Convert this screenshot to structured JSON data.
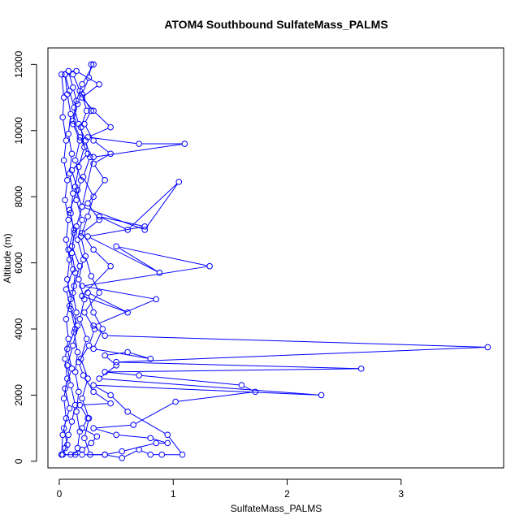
{
  "chart_data": {
    "type": "line",
    "title": "ATOM4 Southbound SulfateMass_PALMS",
    "xlabel": "SulfateMass_PALMS",
    "ylabel": "Altitude (m)",
    "xlim": [
      -0.1,
      3.9
    ],
    "ylim": [
      -200,
      12500
    ],
    "xticks": [
      0,
      1,
      2,
      3
    ],
    "yticks": [
      0,
      2000,
      4000,
      6000,
      8000,
      10000,
      12000
    ],
    "grid": false,
    "legend": "none",
    "line_color": "#0000ff",
    "marker": "open-circle",
    "series": [
      {
        "points": [
          [
            0.02,
            200
          ],
          [
            0.05,
            400
          ],
          [
            0.08,
            800
          ],
          [
            0.11,
            1200
          ],
          [
            0.14,
            1700
          ],
          [
            0.1,
            2300
          ],
          [
            0.07,
            2900
          ],
          [
            0.12,
            3500
          ],
          [
            0.16,
            4100
          ],
          [
            0.09,
            4700
          ],
          [
            0.13,
            5300
          ],
          [
            0.18,
            5900
          ],
          [
            0.11,
            6500
          ],
          [
            0.15,
            7100
          ],
          [
            0.2,
            7700
          ],
          [
            0.14,
            8300
          ],
          [
            0.17,
            8900
          ],
          [
            0.22,
            9500
          ],
          [
            0.19,
            10100
          ],
          [
            0.24,
            10600
          ],
          [
            0.2,
            11100
          ],
          [
            0.26,
            11600
          ],
          [
            0.28,
            12000
          ],
          [
            0.3,
            12000
          ],
          [
            0.2,
            11400
          ],
          [
            0.15,
            10900
          ],
          [
            0.12,
            10300
          ],
          [
            0.18,
            9800
          ],
          [
            0.25,
            9300
          ],
          [
            0.11,
            8800
          ],
          [
            0.16,
            8200
          ],
          [
            0.09,
            7600
          ],
          [
            0.13,
            7000
          ],
          [
            0.08,
            6400
          ],
          [
            0.12,
            5800
          ],
          [
            0.06,
            5200
          ],
          [
            0.1,
            4600
          ],
          [
            0.14,
            4000
          ],
          [
            0.07,
            3400
          ],
          [
            0.11,
            2800
          ],
          [
            0.05,
            2200
          ],
          [
            0.09,
            1600
          ],
          [
            0.04,
            1000
          ],
          [
            0.07,
            500
          ],
          [
            0.03,
            200
          ],
          [
            0.1,
            200
          ],
          [
            0.2,
            350
          ],
          [
            0.28,
            550
          ],
          [
            0.33,
            750
          ],
          [
            0.2,
            1000
          ],
          [
            0.25,
            1300
          ],
          [
            0.18,
            1700
          ],
          [
            0.45,
            1750
          ],
          [
            0.3,
            2100
          ],
          [
            0.21,
            2600
          ],
          [
            0.17,
            3000
          ],
          [
            0.26,
            3500
          ],
          [
            0.31,
            4000
          ],
          [
            0.22,
            4500
          ],
          [
            0.35,
            5100
          ],
          [
            0.28,
            5600
          ],
          [
            0.23,
            6200
          ],
          [
            0.19,
            6800
          ],
          [
            0.25,
            7400
          ],
          [
            0.3,
            8000
          ],
          [
            0.21,
            8600
          ],
          [
            0.27,
            9200
          ],
          [
            0.23,
            9700
          ],
          [
            0.17,
            10200
          ],
          [
            0.13,
            10700
          ],
          [
            0.09,
            11200
          ],
          [
            0.05,
            11700
          ],
          [
            0.02,
            11700
          ],
          [
            0.04,
            11000
          ],
          [
            0.03,
            10400
          ],
          [
            0.06,
            9700
          ],
          [
            0.04,
            9100
          ],
          [
            0.07,
            8500
          ],
          [
            0.05,
            7900
          ],
          [
            0.08,
            7300
          ],
          [
            0.06,
            6700
          ],
          [
            0.09,
            6100
          ],
          [
            0.07,
            5500
          ],
          [
            0.1,
            4900
          ],
          [
            0.06,
            4300
          ],
          [
            0.08,
            3700
          ],
          [
            0.05,
            3100
          ],
          [
            0.07,
            2500
          ],
          [
            0.04,
            1900
          ],
          [
            0.06,
            1300
          ],
          [
            0.03,
            800
          ],
          [
            0.02,
            200
          ],
          [
            0.2,
            200
          ],
          [
            0.4,
            200
          ],
          [
            0.55,
            300
          ],
          [
            0.85,
            550
          ],
          [
            0.95,
            550
          ],
          [
            0.8,
            700
          ],
          [
            0.5,
            800
          ],
          [
            0.3,
            1000
          ],
          [
            0.65,
            1100
          ],
          [
            1.02,
            1800
          ],
          [
            1.72,
            2100
          ],
          [
            1.6,
            2300
          ],
          [
            0.7,
            2600
          ],
          [
            0.4,
            2700
          ],
          [
            2.65,
            2800
          ],
          [
            0.5,
            3000
          ],
          [
            3.76,
            3450
          ],
          [
            0.4,
            3800
          ],
          [
            0.3,
            4100
          ],
          [
            0.85,
            4900
          ],
          [
            0.2,
            5300
          ],
          [
            1.32,
            5900
          ],
          [
            0.5,
            6500
          ],
          [
            0.88,
            5700
          ],
          [
            0.25,
            6800
          ],
          [
            0.75,
            7100
          ],
          [
            0.35,
            7400
          ],
          [
            0.6,
            7000
          ],
          [
            1.05,
            8450
          ],
          [
            0.75,
            7000
          ],
          [
            0.2,
            7700
          ],
          [
            0.3,
            9200
          ],
          [
            1.1,
            9600
          ],
          [
            0.7,
            9600
          ],
          [
            0.25,
            9800
          ],
          [
            0.45,
            10100
          ],
          [
            0.3,
            10600
          ],
          [
            0.2,
            11000
          ],
          [
            0.35,
            11400
          ],
          [
            0.15,
            11800
          ],
          [
            0.08,
            11800
          ],
          [
            0.12,
            11300
          ],
          [
            0.16,
            10800
          ],
          [
            0.12,
            10200
          ],
          [
            0.18,
            9700
          ],
          [
            0.14,
            9100
          ],
          [
            0.19,
            8500
          ],
          [
            0.15,
            7900
          ],
          [
            0.2,
            7300
          ],
          [
            0.16,
            6700
          ],
          [
            0.21,
            6100
          ],
          [
            0.17,
            5500
          ],
          [
            0.22,
            4900
          ],
          [
            0.18,
            4300
          ],
          [
            0.24,
            3700
          ],
          [
            0.19,
            3100
          ],
          [
            0.25,
            2500
          ],
          [
            0.2,
            1900
          ],
          [
            0.26,
            1300
          ],
          [
            0.22,
            700
          ],
          [
            0.27,
            200
          ],
          [
            0.4,
            200
          ],
          [
            0.55,
            100
          ],
          [
            0.7,
            350
          ],
          [
            0.8,
            200
          ],
          [
            0.9,
            200
          ],
          [
            1.08,
            200
          ],
          [
            0.95,
            800
          ],
          [
            0.6,
            1500
          ],
          [
            0.45,
            2000
          ],
          [
            0.3,
            2300
          ],
          [
            2.3,
            2000
          ],
          [
            0.35,
            2500
          ],
          [
            0.5,
            2900
          ],
          [
            0.4,
            3200
          ],
          [
            0.6,
            3300
          ],
          [
            0.8,
            3100
          ],
          [
            0.3,
            3400
          ],
          [
            0.38,
            4000
          ],
          [
            0.3,
            4500
          ],
          [
            0.25,
            5100
          ],
          [
            0.6,
            4500
          ],
          [
            0.2,
            5000
          ],
          [
            0.45,
            5900
          ],
          [
            0.3,
            6400
          ],
          [
            0.2,
            6900
          ],
          [
            0.35,
            7300
          ],
          [
            0.25,
            7800
          ],
          [
            0.4,
            8500
          ],
          [
            0.3,
            9000
          ],
          [
            0.45,
            9300
          ],
          [
            0.3,
            9700
          ],
          [
            0.22,
            10200
          ],
          [
            0.28,
            10600
          ],
          [
            0.18,
            11200
          ],
          [
            0.12,
            11700
          ],
          [
            0.05,
            11700
          ],
          [
            0.07,
            11100
          ],
          [
            0.1,
            10500
          ],
          [
            0.08,
            9900
          ],
          [
            0.11,
            9300
          ],
          [
            0.09,
            8700
          ],
          [
            0.12,
            8100
          ],
          [
            0.1,
            7500
          ],
          [
            0.13,
            6900
          ],
          [
            0.11,
            6300
          ],
          [
            0.14,
            5700
          ],
          [
            0.12,
            5100
          ],
          [
            0.15,
            4500
          ],
          [
            0.13,
            3900
          ],
          [
            0.16,
            3300
          ],
          [
            0.14,
            2700
          ],
          [
            0.17,
            2100
          ],
          [
            0.15,
            1500
          ],
          [
            0.18,
            900
          ],
          [
            0.16,
            400
          ],
          [
            0.14,
            200
          ]
        ]
      }
    ]
  }
}
